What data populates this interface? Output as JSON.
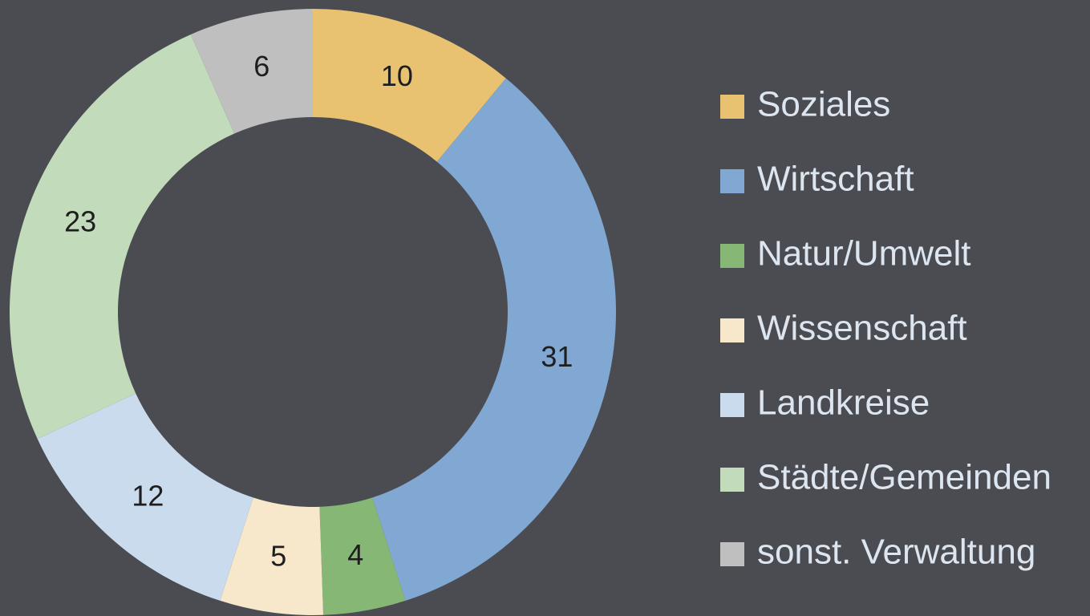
{
  "chart_data": {
    "type": "donut",
    "categories": [
      "Soziales",
      "Wirtschaft",
      "Natur/Umwelt",
      "Wissenschaft",
      "Landkreise",
      "Städte/Gemeinden",
      "sonst. Verwaltung"
    ],
    "values": [
      10,
      31,
      4,
      5,
      12,
      23,
      6
    ],
    "colors": [
      "#e8c271",
      "#80a8d3",
      "#87b774",
      "#f8e8cb",
      "#c9dbed",
      "#c1dbbb",
      "#bfbfbf"
    ],
    "legend": "right"
  }
}
